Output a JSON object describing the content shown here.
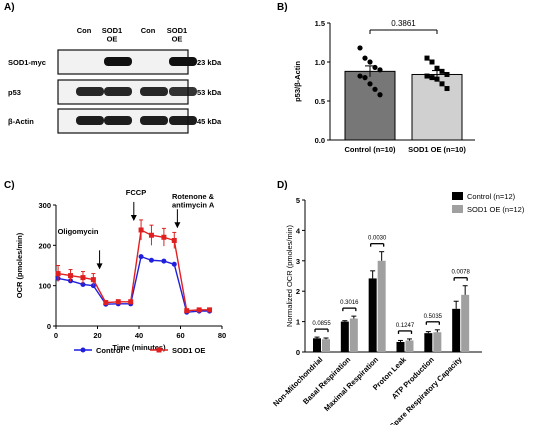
{
  "panels": {
    "a": "A)",
    "b": "B)",
    "c": "C)",
    "d": "D)"
  },
  "blot": {
    "columns": [
      "Con",
      "SOD1\nOE",
      "Con",
      "SOD1\nOE"
    ],
    "rows": [
      {
        "label": "SOD1-myc",
        "kda": "23 kDa",
        "bands": [
          0.0,
          1.0,
          0.0,
          1.0
        ]
      },
      {
        "label": "p53",
        "kda": "53 kDa",
        "bands": [
          0.9,
          0.9,
          0.9,
          0.85
        ]
      },
      {
        "label": "β-Actin",
        "kda": "45 kDa",
        "bands": [
          0.95,
          0.95,
          0.95,
          0.95
        ]
      }
    ]
  },
  "chart_data": [
    {
      "panel": "B",
      "type": "bar",
      "ylabel": "p53/β-Actin",
      "ylim": [
        0.0,
        1.5
      ],
      "yticks": [
        "0.0",
        "0.5",
        "1.0",
        "1.5"
      ],
      "categories": [
        "Control (n=10)",
        "SOD1 OE (n=10)"
      ],
      "values": [
        0.88,
        0.84
      ],
      "errors": [
        0.07,
        0.05
      ],
      "colors": [
        "#777777",
        "#d0d0d0"
      ],
      "points": [
        [
          1.18,
          1.05,
          1.0,
          0.93,
          0.9,
          0.82,
          0.8,
          0.72,
          0.65,
          0.58
        ],
        [
          1.05,
          1.0,
          0.92,
          0.88,
          0.84,
          0.82,
          0.8,
          0.78,
          0.72,
          0.66
        ]
      ],
      "pvalue": "0.3861"
    },
    {
      "panel": "C",
      "type": "line",
      "xlabel": "Time (minutes)",
      "ylabel": "OCR (pmoles/min)",
      "xlim": [
        0,
        80
      ],
      "ylim": [
        0,
        300
      ],
      "xticks": [
        "0",
        "20",
        "40",
        "60",
        "80"
      ],
      "yticks": [
        "0",
        "100",
        "200",
        "300"
      ],
      "annotations": [
        "Oligomycin",
        "FCCP",
        "Rotenone &\nantimycin A"
      ],
      "series": [
        {
          "name": "Control",
          "color": "#1f1fdd",
          "x": [
            1,
            7,
            13,
            18,
            24,
            30,
            36,
            41,
            46,
            52,
            57,
            63,
            69,
            74
          ],
          "y": [
            118,
            112,
            103,
            100,
            54,
            55,
            55,
            172,
            163,
            161,
            153,
            34,
            37,
            37
          ]
        },
        {
          "name": "SOD1 OE",
          "color": "#e02020",
          "x": [
            1,
            7,
            13,
            18,
            24,
            30,
            36,
            41,
            46,
            52,
            57,
            63,
            69,
            74
          ],
          "y": [
            130,
            125,
            120,
            115,
            58,
            60,
            60,
            238,
            225,
            220,
            212,
            38,
            40,
            40
          ],
          "errors": [
            20,
            15,
            15,
            15,
            5,
            5,
            5,
            25,
            25,
            22,
            20,
            4,
            4,
            4
          ]
        }
      ]
    },
    {
      "panel": "D",
      "type": "bar",
      "ylabel": "Normalized OCR (pmoles/min)",
      "ylim": [
        0,
        5
      ],
      "yticks": [
        "0",
        "1",
        "2",
        "3",
        "4",
        "5"
      ],
      "categories": [
        "Non-Mitochondrial",
        "Basal Respiration",
        "Maximal Respiration",
        "Proton Leak",
        "ATP Production",
        "Spare Respiratory Capacity"
      ],
      "series": [
        {
          "name": "Control (n=12)",
          "color": "#000000",
          "values": [
            0.45,
            1.0,
            2.42,
            0.33,
            0.62,
            1.42
          ],
          "errors": [
            0.04,
            0.03,
            0.25,
            0.05,
            0.05,
            0.25
          ]
        },
        {
          "name": "SOD1 OE (n=12)",
          "color": "#a0a0a0",
          "values": [
            0.42,
            1.1,
            3.0,
            0.38,
            0.65,
            1.88
          ],
          "errors": [
            0.04,
            0.08,
            0.3,
            0.05,
            0.08,
            0.3
          ]
        }
      ],
      "pvalues": [
        "0.0855",
        "0.3016",
        "0.0030",
        "0.1247",
        "0.5035",
        "0.0078"
      ]
    }
  ]
}
